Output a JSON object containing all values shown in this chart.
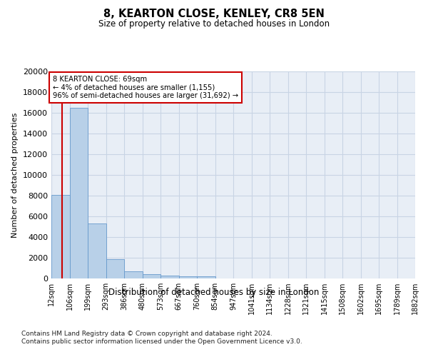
{
  "title": "8, KEARTON CLOSE, KENLEY, CR8 5EN",
  "subtitle": "Size of property relative to detached houses in London",
  "xlabel": "Distribution of detached houses by size in London",
  "ylabel": "Number of detached properties",
  "bar_color": "#b8d0e8",
  "bar_edge_color": "#6699cc",
  "annotation_box_color": "#cc0000",
  "vline_color": "#cc0000",
  "grid_color": "#c8d4e4",
  "background_color": "#e8eef6",
  "vline_x_index": 0.6,
  "annotation_title": "8 KEARTON CLOSE: 69sqm",
  "annotation_line1": "← 4% of detached houses are smaller (1,155)",
  "annotation_line2": "96% of semi-detached houses are larger (31,692) →",
  "footnote1": "Contains HM Land Registry data © Crown copyright and database right 2024.",
  "footnote2": "Contains public sector information licensed under the Open Government Licence v3.0.",
  "tick_labels": [
    "12sqm",
    "106sqm",
    "199sqm",
    "293sqm",
    "386sqm",
    "480sqm",
    "573sqm",
    "667sqm",
    "760sqm",
    "854sqm",
    "947sqm",
    "1041sqm",
    "1134sqm",
    "1228sqm",
    "1321sqm",
    "1415sqm",
    "1508sqm",
    "1602sqm",
    "1695sqm",
    "1789sqm",
    "1882sqm"
  ],
  "bar_heights": [
    8100,
    16500,
    5300,
    1850,
    700,
    380,
    300,
    230,
    210,
    0,
    0,
    0,
    0,
    0,
    0,
    0,
    0,
    0,
    0,
    0
  ],
  "ylim": [
    0,
    20000
  ],
  "yticks": [
    0,
    2000,
    4000,
    6000,
    8000,
    10000,
    12000,
    14000,
    16000,
    18000,
    20000
  ],
  "n_bars": 20
}
